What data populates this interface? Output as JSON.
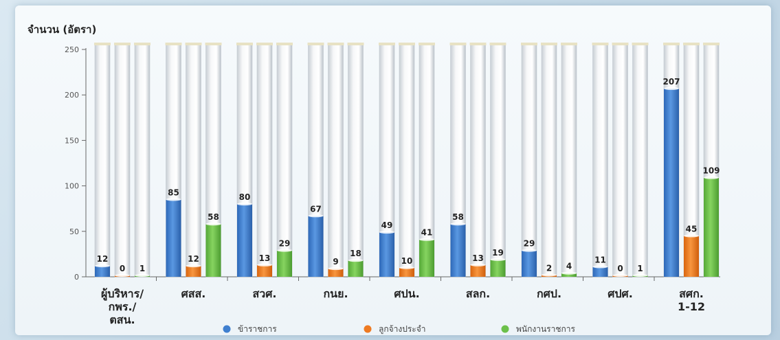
{
  "chart_data": {
    "type": "bar",
    "ylabel": "จำนวน (อัตรา)",
    "ylim": [
      0,
      250
    ],
    "yticks": [
      0,
      50,
      100,
      150,
      200,
      250
    ],
    "categories": [
      [
        "ผู้บริหาร/",
        "กพร./",
        "ตสน."
      ],
      [
        "ศสส."
      ],
      [
        "สวศ."
      ],
      [
        "กนย."
      ],
      [
        "ศปน."
      ],
      [
        "สลก."
      ],
      [
        "กศป."
      ],
      [
        "ศปศ."
      ],
      [
        "สศก.",
        "1-12"
      ]
    ],
    "series": [
      {
        "name": "ข้าราชการ",
        "color": "#3f7fcf",
        "values": [
          12,
          85,
          80,
          67,
          49,
          58,
          29,
          11,
          207
        ]
      },
      {
        "name": "ลูกจ้างประจำ",
        "color": "#ee7a22",
        "values": [
          0,
          12,
          13,
          9,
          10,
          13,
          2,
          0,
          45
        ]
      },
      {
        "name": "พนักงานราชการ",
        "color": "#6cc04a",
        "values": [
          1,
          58,
          29,
          18,
          41,
          19,
          4,
          1,
          109
        ]
      }
    ],
    "legend_position": "bottom",
    "grid": false
  }
}
